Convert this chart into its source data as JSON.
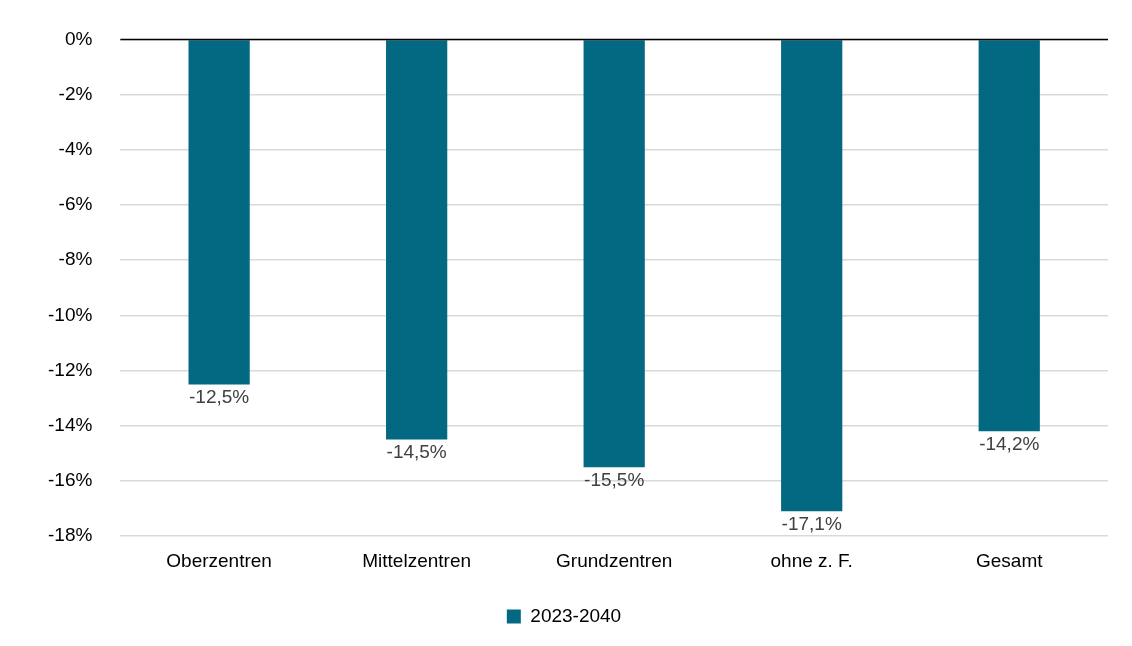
{
  "chart_data": {
    "type": "bar",
    "categories": [
      "Oberzentren",
      "Mittelzentren",
      "Grundzentren",
      "ohne z. F.",
      "Gesamt"
    ],
    "series": [
      {
        "name": "2023-2040",
        "color": "#036882",
        "values": [
          -12.5,
          -14.5,
          -15.5,
          -17.1,
          -14.2
        ],
        "value_labels": [
          "-12,5%",
          "-14,5%",
          "-15,5%",
          "-17,1%",
          "-14,2%"
        ]
      }
    ],
    "ylim": [
      -18,
      0
    ],
    "yticks": [
      {
        "value": 0,
        "label": "0%"
      },
      {
        "value": -2,
        "label": "-2%"
      },
      {
        "value": -4,
        "label": "-4%"
      },
      {
        "value": -6,
        "label": "-6%"
      },
      {
        "value": -8,
        "label": "-8%"
      },
      {
        "value": -10,
        "label": "-10%"
      },
      {
        "value": -12,
        "label": "-12%"
      },
      {
        "value": -14,
        "label": "-14%"
      },
      {
        "value": -16,
        "label": "-16%"
      },
      {
        "value": -18,
        "label": "-18%"
      }
    ],
    "grid": "y",
    "legend": "bottom"
  }
}
